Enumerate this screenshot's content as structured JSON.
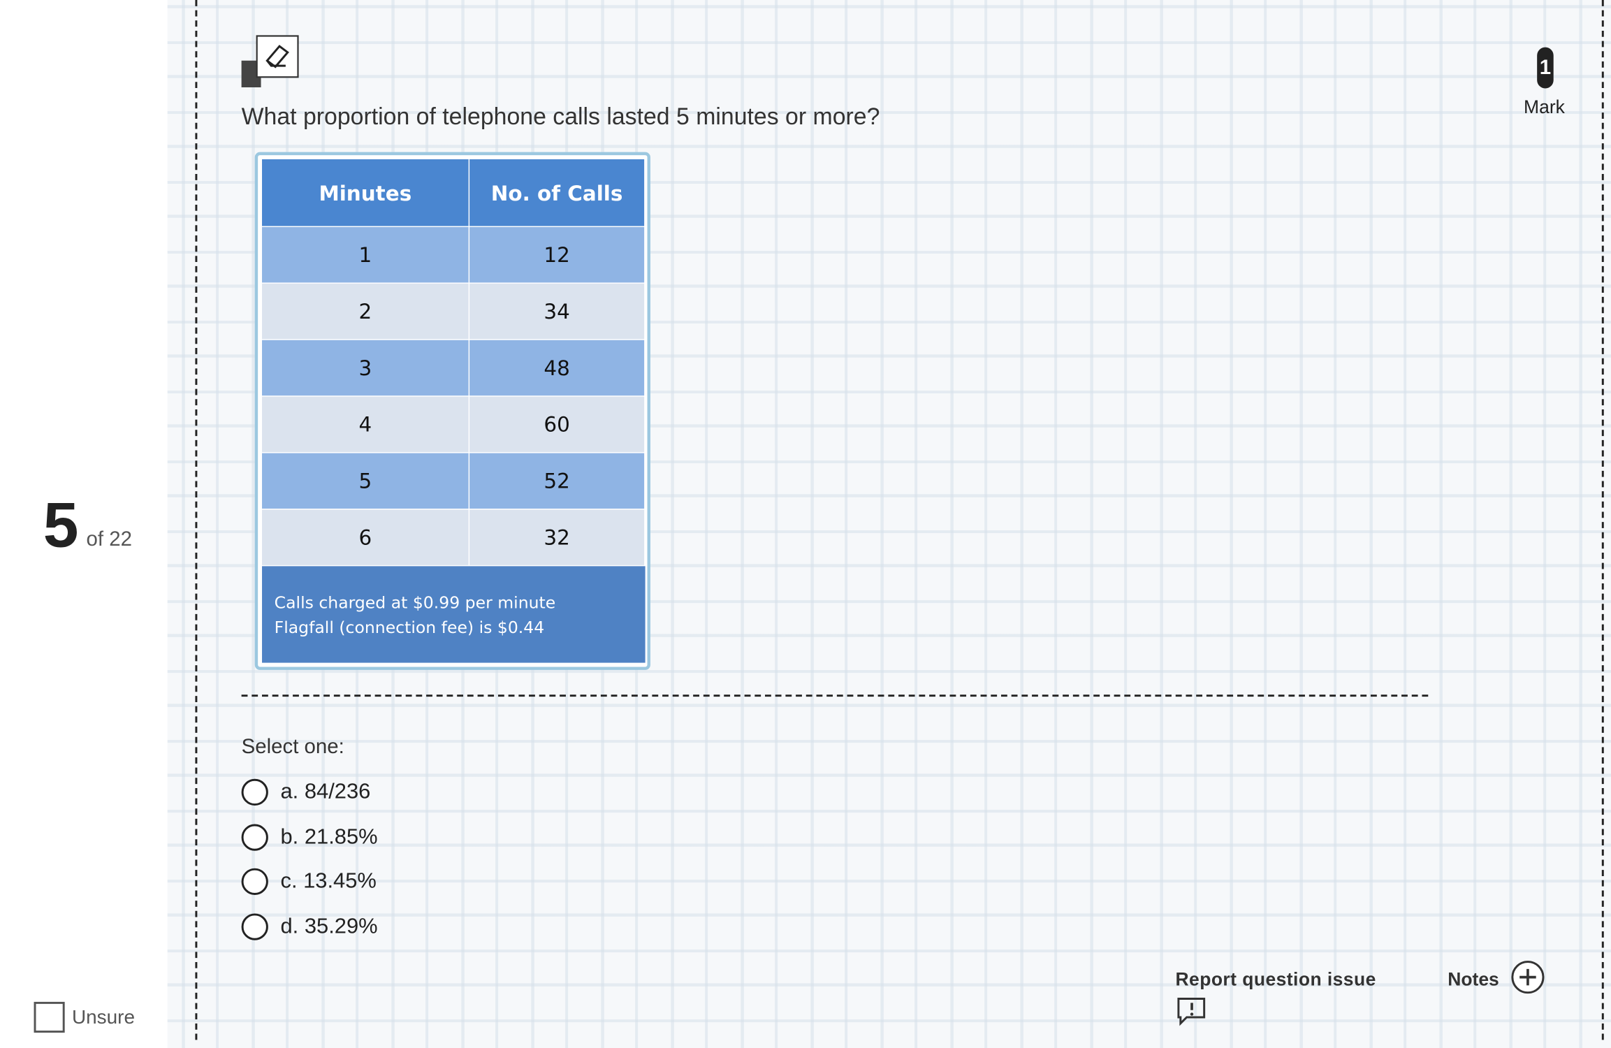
{
  "question_number": "5",
  "question_total": "of 22",
  "mark_value": "1",
  "mark_label": "Mark",
  "question_text": "What proportion of telephone calls lasted 5 minutes or more?",
  "table": {
    "header": [
      "Minutes",
      "No. of Calls"
    ],
    "rows": [
      [
        "1",
        "12"
      ],
      [
        "2",
        "34"
      ],
      [
        "3",
        "48"
      ],
      [
        "4",
        "60"
      ],
      [
        "5",
        "52"
      ],
      [
        "6",
        "32"
      ]
    ],
    "footer": [
      "Calls charged at $0.99 per minute",
      "Flagfall (connection fee) is $0.44"
    ]
  },
  "prompt": "Select one:",
  "options": [
    "a. 84/236",
    "b. 21.85%",
    "c. 13.45%",
    "d. 35.29%"
  ],
  "unsure": "Unsure",
  "report": "Report question issue",
  "notes": "Notes"
}
